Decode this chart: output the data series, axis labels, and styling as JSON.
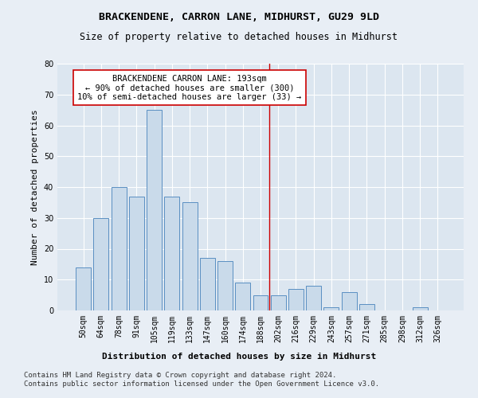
{
  "title": "BRACKENDENE, CARRON LANE, MIDHURST, GU29 9LD",
  "subtitle": "Size of property relative to detached houses in Midhurst",
  "xlabel": "Distribution of detached houses by size in Midhurst",
  "ylabel": "Number of detached properties",
  "categories": [
    "50sqm",
    "64sqm",
    "78sqm",
    "91sqm",
    "105sqm",
    "119sqm",
    "133sqm",
    "147sqm",
    "160sqm",
    "174sqm",
    "188sqm",
    "202sqm",
    "216sqm",
    "229sqm",
    "243sqm",
    "257sqm",
    "271sqm",
    "285sqm",
    "298sqm",
    "312sqm",
    "326sqm"
  ],
  "values": [
    14,
    30,
    40,
    37,
    65,
    37,
    35,
    17,
    16,
    9,
    5,
    5,
    7,
    8,
    1,
    6,
    2,
    0,
    0,
    1,
    0
  ],
  "bar_color": "#c9daea",
  "bar_edge_color": "#5a8fc2",
  "fig_bg_color": "#e8eef5",
  "ax_bg_color": "#dce6f0",
  "grid_color": "#ffffff",
  "vline_x": 10.5,
  "vline_color": "#cc0000",
  "annotation_line1": "BRACKENDENE CARRON LANE: 193sqm",
  "annotation_line2": "← 90% of detached houses are smaller (300)",
  "annotation_line3": "10% of semi-detached houses are larger (33) →",
  "annotation_box_color": "#ffffff",
  "annotation_box_edge_color": "#cc0000",
  "ylim": [
    0,
    80
  ],
  "yticks": [
    0,
    10,
    20,
    30,
    40,
    50,
    60,
    70,
    80
  ],
  "title_fontsize": 9.5,
  "subtitle_fontsize": 8.5,
  "xlabel_fontsize": 8,
  "ylabel_fontsize": 8,
  "tick_fontsize": 7,
  "annotation_fontsize": 7.5,
  "footer_fontsize": 6.5,
  "footer": "Contains HM Land Registry data © Crown copyright and database right 2024.\nContains public sector information licensed under the Open Government Licence v3.0."
}
